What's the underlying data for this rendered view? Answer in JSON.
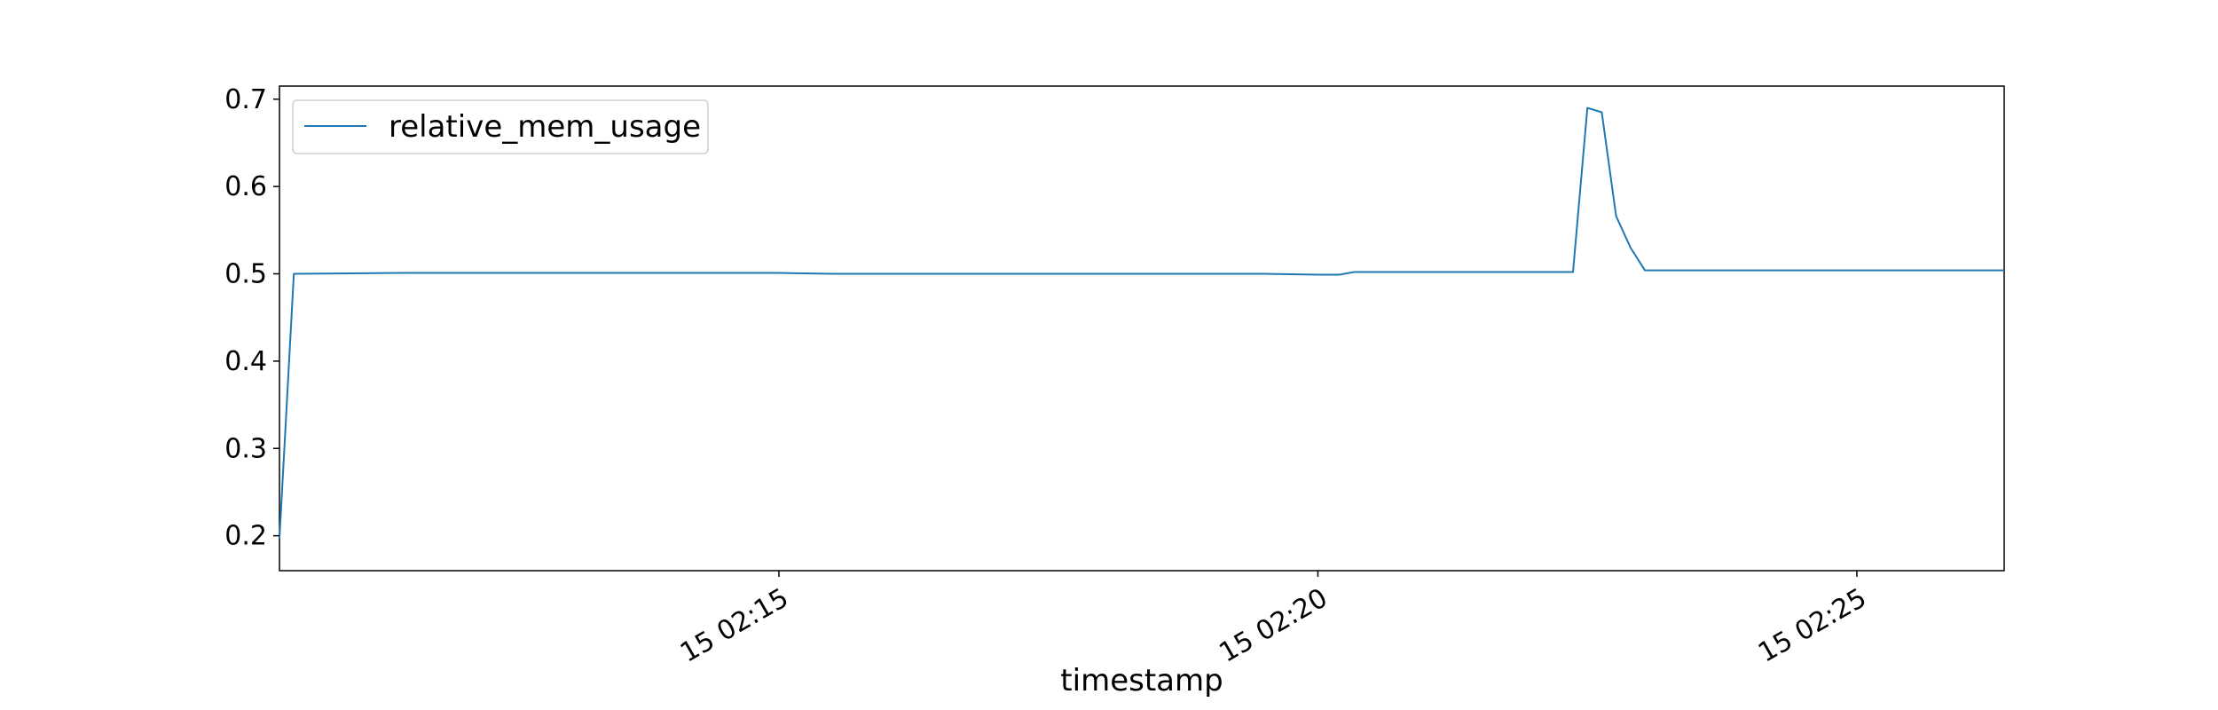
{
  "chart_data": {
    "type": "line",
    "xlabel": "timestamp",
    "ylabel": "",
    "x_tick_labels": [
      "15 02:15",
      "15 02:20",
      "15 02:25"
    ],
    "x_tick_values": [
      "02:15:00",
      "02:20:00",
      "02:25:00"
    ],
    "xlim": [
      "02:10:22",
      "02:26:22"
    ],
    "y_ticks": [
      0.2,
      0.3,
      0.4,
      0.5,
      0.6,
      0.7
    ],
    "ylim": [
      0.16,
      0.715
    ],
    "grid": false,
    "legend_position": "upper-left",
    "series": [
      {
        "name": "relative_mem_usage",
        "color": "#1f77b4",
        "x": [
          "02:10:22",
          "02:10:30",
          "02:11:30",
          "02:12:30",
          "02:13:30",
          "02:14:30",
          "02:15:00",
          "02:15:30",
          "02:16:30",
          "02:17:30",
          "02:18:30",
          "02:19:30",
          "02:20:00",
          "02:20:12",
          "02:20:20",
          "02:20:30",
          "02:21:30",
          "02:22:00",
          "02:22:22",
          "02:22:30",
          "02:22:38",
          "02:22:46",
          "02:22:54",
          "02:23:02",
          "02:23:30",
          "02:24:30",
          "02:25:30",
          "02:26:22"
        ],
        "y": [
          0.197,
          0.5,
          0.501,
          0.501,
          0.501,
          0.501,
          0.501,
          0.5,
          0.5,
          0.5,
          0.5,
          0.5,
          0.499,
          0.499,
          0.502,
          0.502,
          0.502,
          0.502,
          0.502,
          0.69,
          0.685,
          0.566,
          0.53,
          0.504,
          0.504,
          0.504,
          0.504,
          0.504
        ]
      }
    ]
  }
}
